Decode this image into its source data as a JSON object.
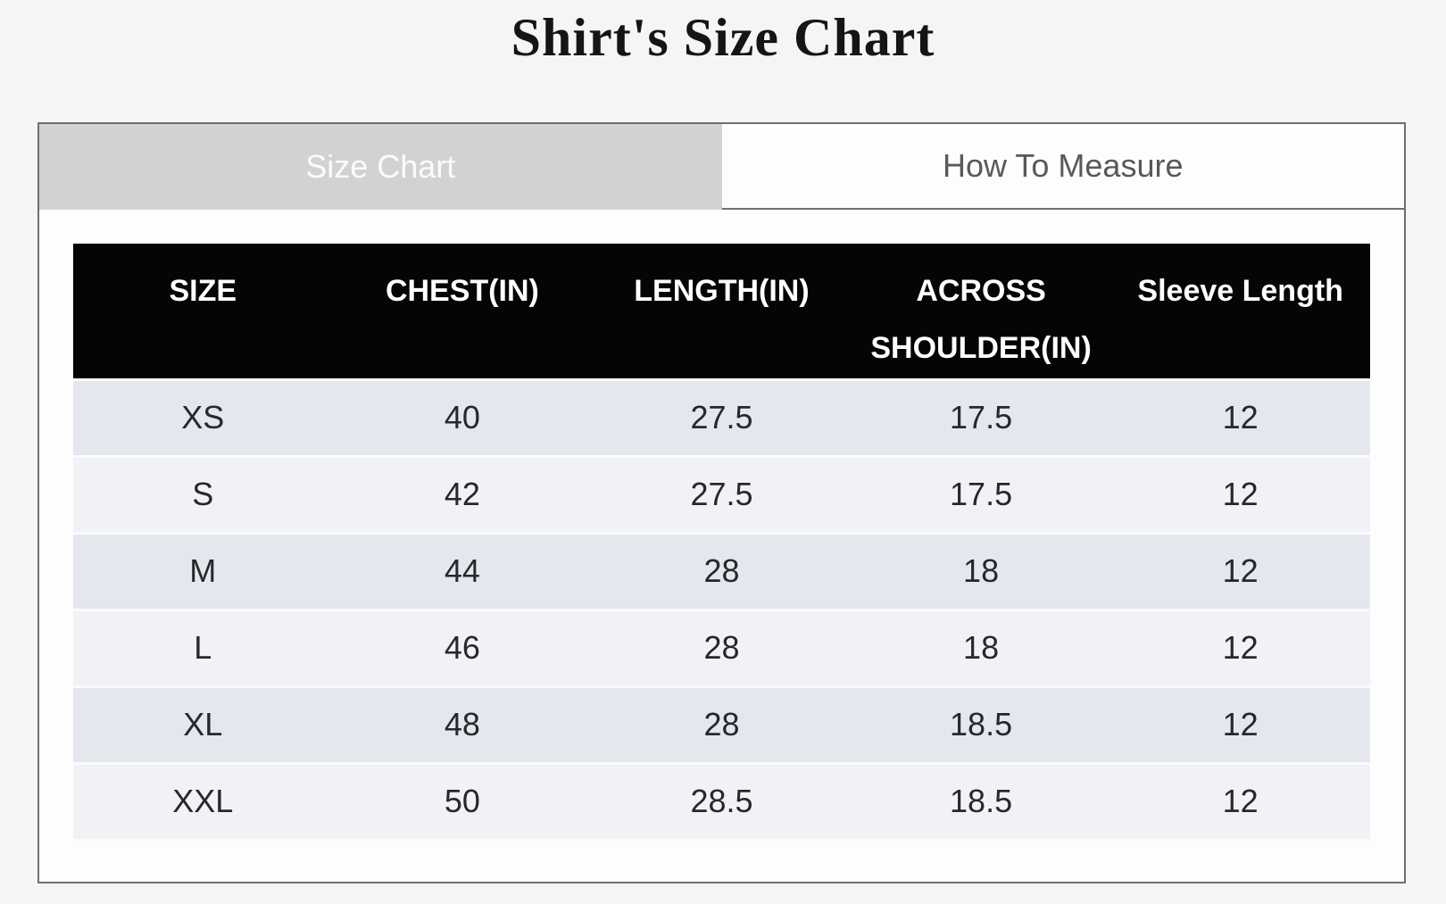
{
  "page": {
    "title": "Shirt's Size Chart"
  },
  "tabs": [
    {
      "label": "Size Chart",
      "active": true
    },
    {
      "label": "How To Measure",
      "active": false
    }
  ],
  "table": {
    "columns": [
      "SIZE",
      "CHEST(IN)",
      "LENGTH(IN)",
      "ACROSS SHOULDER(IN)",
      "Sleeve Length"
    ],
    "rows": [
      [
        "XS",
        "40",
        "27.5",
        "17.5",
        "12"
      ],
      [
        "S",
        "42",
        "27.5",
        "17.5",
        "12"
      ],
      [
        "M",
        "44",
        "28",
        "18",
        "12"
      ],
      [
        "L",
        "46",
        "28",
        "18",
        "12"
      ],
      [
        "XL",
        "48",
        "28",
        "18.5",
        "12"
      ],
      [
        "XXL",
        "50",
        "28.5",
        "18.5",
        "12"
      ]
    ]
  },
  "colors": {
    "page_background": "#f6f5f4",
    "panel_border": "#6f6f6f",
    "tab_active_background": "#d2d2d2",
    "tab_active_text": "#fbfbfb",
    "tab_inactive_background": "#fdfdfd",
    "tab_inactive_text": "#58595b",
    "table_header_background": "#050505",
    "table_header_text": "#ffffff",
    "row_odd_background": "#e5e7ee",
    "row_even_background": "#f1f2f6",
    "cell_text": "#26282b"
  }
}
